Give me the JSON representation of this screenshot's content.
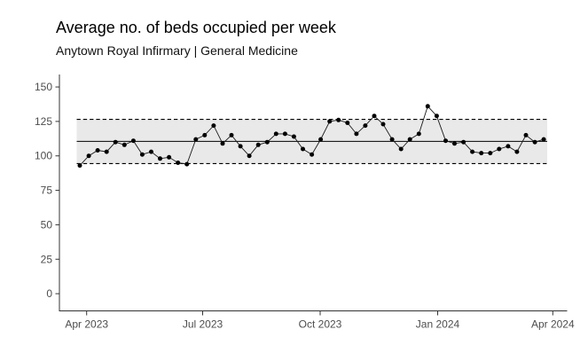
{
  "figure": {
    "title": "Average no. of beds occupied per week",
    "subtitle": "Anytown Royal Infirmary | General Medicine"
  },
  "chart_data": {
    "type": "line",
    "title": "Average no. of beds occupied per week",
    "subtitle": "Anytown Royal Infirmary | General Medicine",
    "xlabel": "",
    "ylabel": "",
    "x_tick_labels": [
      "Apr 2023",
      "Jul 2023",
      "Oct 2023",
      "Jan 2024",
      "Apr 2024"
    ],
    "y_ticks": [
      0,
      25,
      50,
      75,
      100,
      125,
      150
    ],
    "ylim": [
      0,
      157
    ],
    "grid": false,
    "legend": "none",
    "point_marker": "filled-circle",
    "series": [
      {
        "name": "weekly-average-beds-occupied",
        "values": [
          93,
          100,
          104,
          103,
          110,
          108,
          111,
          101,
          103,
          98,
          99,
          95,
          94,
          112,
          115,
          122,
          109,
          115,
          107,
          100,
          108,
          110,
          116,
          116,
          114,
          105,
          101,
          112,
          125,
          126,
          124,
          116,
          122,
          129,
          123,
          112,
          105,
          112,
          116,
          136,
          129,
          111,
          109,
          110,
          103,
          102,
          102,
          105,
          107,
          103,
          115,
          110,
          112
        ]
      }
    ],
    "center_line": 110.5,
    "upper_control_limit": 126.5,
    "lower_control_limit": 94.4,
    "control_band_shaded": true,
    "colors": {
      "point": "#000000",
      "line": "#1a1a1a",
      "center_line": "#000000",
      "limit_line": "#000000",
      "band": "#e9e9e9",
      "axis": "#333333",
      "axis_text": "#4d4d4d"
    }
  }
}
